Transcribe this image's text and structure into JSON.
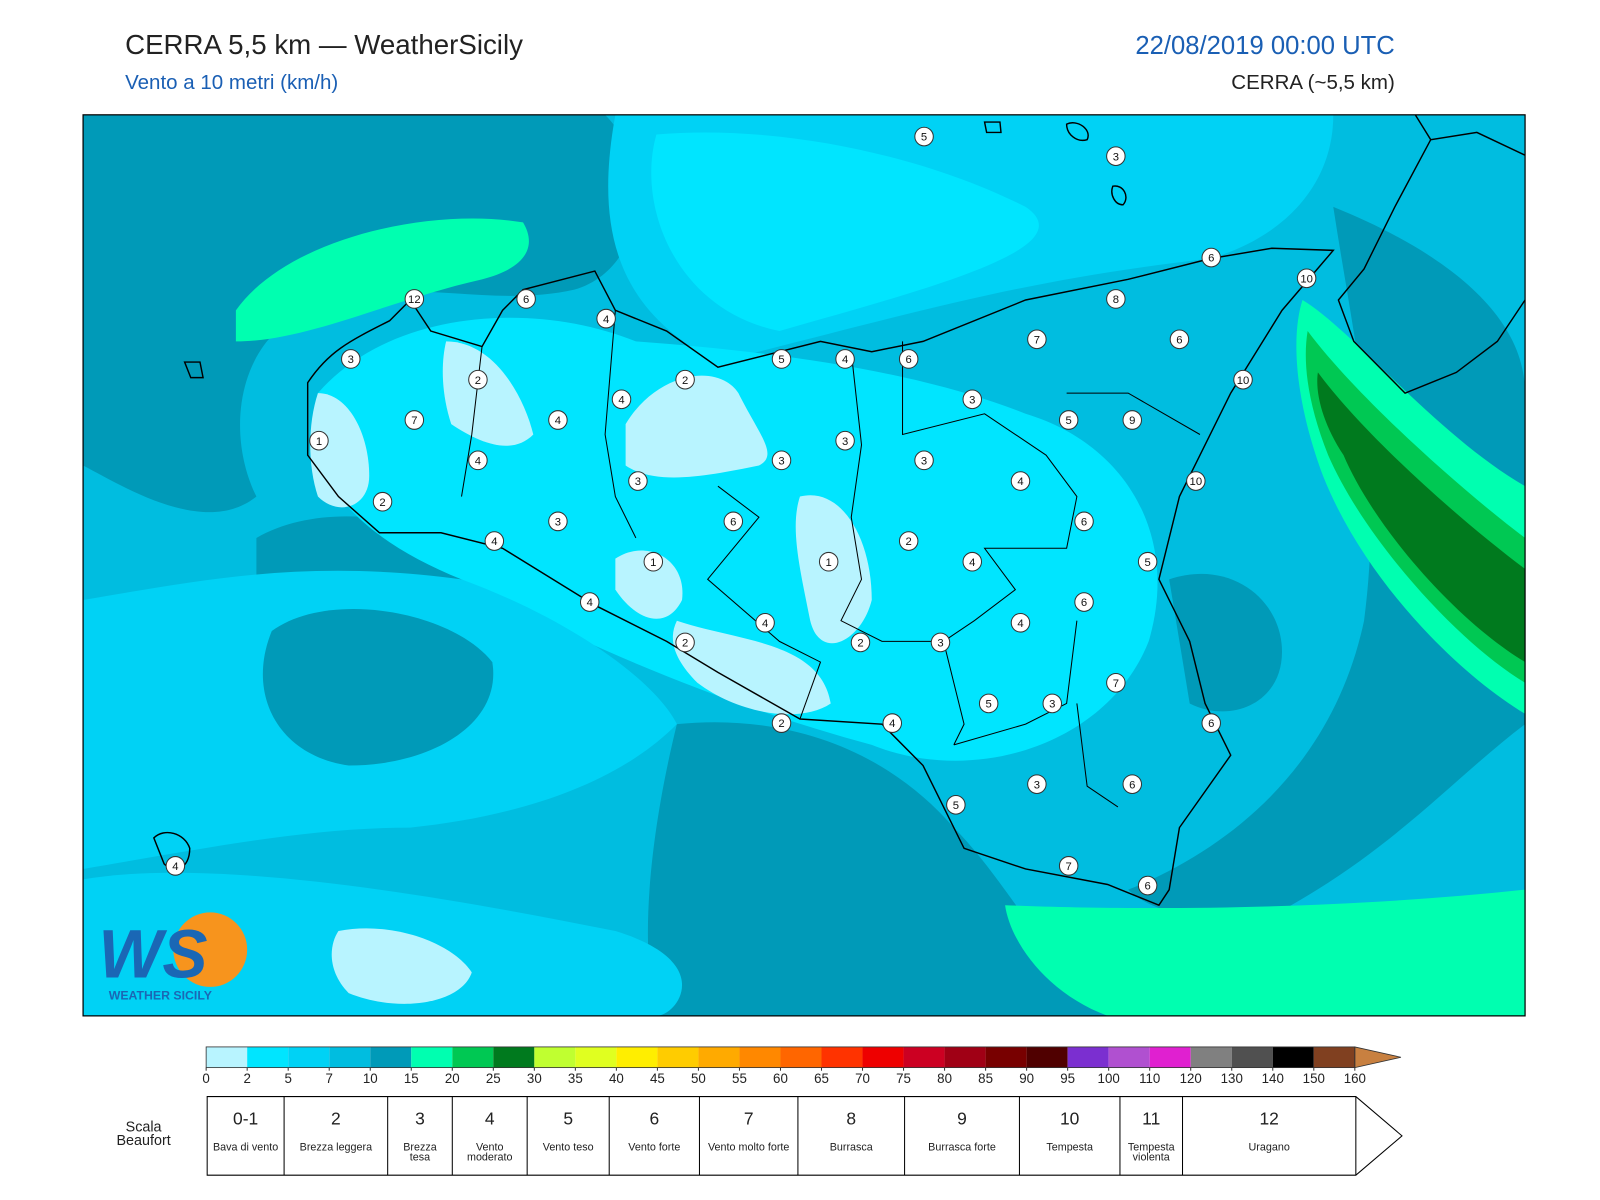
{
  "header": {
    "title": "CERRA 5,5 km — WeatherSicily",
    "subtitle": "Vento a 10 metri (km/h)",
    "date": "22/08/2019 00:00 UTC",
    "model": "CERRA (~5,5 km)"
  },
  "logo": {
    "mark": "WS",
    "text": "WEATHER SICILY"
  },
  "stations": {
    "values": [
      5,
      3,
      6,
      10,
      12,
      6,
      8,
      4,
      7,
      6,
      3,
      5,
      4,
      6,
      2,
      2,
      10,
      4,
      3,
      7,
      4,
      5,
      9,
      1,
      3,
      4,
      3,
      3,
      3,
      4,
      10,
      2,
      3,
      6,
      6,
      4,
      2,
      1,
      1,
      4,
      5,
      4,
      6,
      4,
      4,
      2,
      2,
      3,
      7,
      5,
      3,
      2,
      4,
      6,
      3,
      6,
      5,
      7,
      6,
      4
    ]
  },
  "colorbar": {
    "levels": [
      0,
      2,
      5,
      7,
      10,
      15,
      20,
      25,
      30,
      35,
      40,
      45,
      50,
      55,
      60,
      65,
      70,
      75,
      80,
      85,
      90,
      95,
      100,
      110,
      120,
      130,
      140,
      150,
      160
    ],
    "colors": [
      "#b8f4ff",
      "#00e5ff",
      "#00d2f5",
      "#00bde0",
      "#009ab8",
      "#00ffb0",
      "#00c853",
      "#007a1e",
      "#c0ff30",
      "#e0ff20",
      "#ffee00",
      "#ffcc00",
      "#ffaa00",
      "#ff8800",
      "#ff6600",
      "#ff3300",
      "#ee0000",
      "#cc0022",
      "#a00015",
      "#780000",
      "#500000",
      "#7b2fd0",
      "#b050d0",
      "#e020d0",
      "#808080",
      "#505050",
      "#000000",
      "#804020",
      "#c88040"
    ]
  },
  "beaufort": {
    "title": "Scala Beaufort",
    "classes": [
      {
        "force": "0-1",
        "label": "Bava di vento"
      },
      {
        "force": 2,
        "label": "Brezza leggera"
      },
      {
        "force": 3,
        "label": "Brezza tesa"
      },
      {
        "force": 4,
        "label": "Vento moderato"
      },
      {
        "force": 5,
        "label": "Vento teso"
      },
      {
        "force": 6,
        "label": "Vento forte"
      },
      {
        "force": 7,
        "label": "Vento molto forte"
      },
      {
        "force": 8,
        "label": "Burrasca"
      },
      {
        "force": 9,
        "label": "Burrasca forte"
      },
      {
        "force": 10,
        "label": "Tempesta"
      },
      {
        "force": 11,
        "label": "Tempesta violenta"
      },
      {
        "force": 12,
        "label": "Uragano"
      }
    ]
  }
}
